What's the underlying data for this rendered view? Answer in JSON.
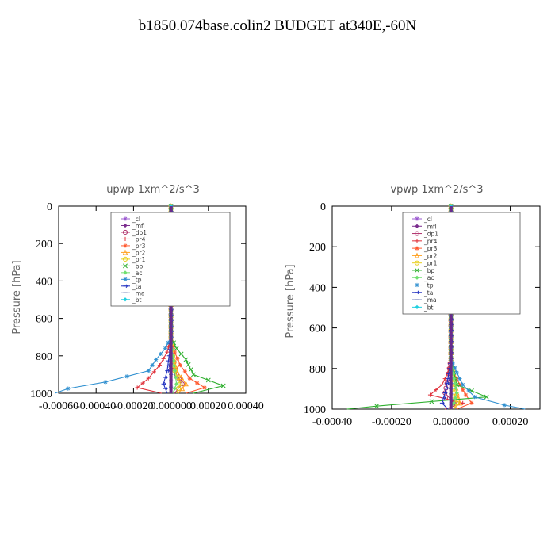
{
  "figure_title": "b1850.074base.colin2  BUDGET at340E,-60N",
  "legend_labels": [
    "_cl",
    "_mfl",
    "_dp1",
    "_pr4",
    "_pr3",
    "_pr2",
    "_pr1",
    "_bp",
    "_ac",
    "_tp",
    "_ta",
    "_ma",
    "_bt"
  ],
  "legend_colors": [
    "#9b59d0",
    "#7b2d8e",
    "#b0306a",
    "#e0303a",
    "#ff5a30",
    "#ffa020",
    "#e8d020",
    "#30b030",
    "#70e070",
    "#3090d0",
    "#2030c0",
    "#6070b0",
    "#20d0e0"
  ],
  "chart_data": [
    {
      "type": "line",
      "title": "upwp   1xm^2/s^3",
      "ylabel": "Pressure [hPa]",
      "xlim": [
        -0.0006,
        0.0004
      ],
      "ylim": [
        1000,
        0
      ],
      "x_tick_labels": [
        "-0.00060",
        "-0.00040",
        "-0.00020",
        "0.000000",
        "0.00020",
        "0.00040"
      ],
      "y_tick_labels": [
        "0",
        "200",
        "400",
        "600",
        "800",
        "1000"
      ],
      "legend_position": "top-right",
      "grid": false,
      "series": [
        {
          "name": "_cl",
          "color": "#9b59d0",
          "x": [
            0,
            0,
            0,
            0,
            0,
            0,
            0
          ],
          "y": [
            0,
            200,
            400,
            600,
            800,
            900,
            1000
          ]
        },
        {
          "name": "_mfl",
          "color": "#7b2d8e",
          "x": [
            0,
            0,
            0,
            0,
            0,
            0,
            0
          ],
          "y": [
            0,
            200,
            400,
            600,
            800,
            900,
            1000
          ]
        },
        {
          "name": "_dp1",
          "color": "#b0306a",
          "x": [
            0,
            0,
            0,
            1e-05,
            3e-05,
            6e-05,
            2e-05
          ],
          "y": [
            0,
            400,
            700,
            800,
            900,
            950,
            1000
          ]
        },
        {
          "name": "_pr4",
          "color": "#e0303a",
          "x": [
            0,
            0,
            -2e-05,
            -6e-05,
            -0.00012,
            -0.00018,
            -5e-05
          ],
          "y": [
            0,
            700,
            780,
            850,
            920,
            970,
            1000
          ]
        },
        {
          "name": "_pr3",
          "color": "#ff5a30",
          "x": [
            0,
            0,
            2e-05,
            5e-05,
            0.0001,
            0.00018,
            8e-05
          ],
          "y": [
            0,
            700,
            780,
            850,
            920,
            970,
            1000
          ]
        },
        {
          "name": "_pr2",
          "color": "#ffa020",
          "x": [
            0,
            0,
            1e-05,
            3e-05,
            8e-05,
            4e-05
          ],
          "y": [
            0,
            700,
            800,
            880,
            950,
            1000
          ]
        },
        {
          "name": "_pr1",
          "color": "#e8d020",
          "x": [
            0,
            0,
            1e-05,
            2e-05,
            5e-05,
            3e-05
          ],
          "y": [
            0,
            700,
            800,
            880,
            950,
            1000
          ]
        },
        {
          "name": "_bp",
          "color": "#30b030",
          "x": [
            0,
            0,
            3e-05,
            8e-05,
            0.00012,
            0.00028,
            0.00012
          ],
          "y": [
            0,
            700,
            760,
            820,
            900,
            960,
            1000
          ]
        },
        {
          "name": "_ac",
          "color": "#70e070",
          "x": [
            0,
            0,
            1e-05,
            2e-05,
            3e-05,
            1e-05
          ],
          "y": [
            0,
            700,
            800,
            880,
            950,
            1000
          ]
        },
        {
          "name": "_tp",
          "color": "#3090d0",
          "x": [
            0,
            0,
            -3e-05,
            -8e-05,
            -0.00012,
            -0.00035,
            -0.00055,
            -0.00062
          ],
          "y": [
            0,
            700,
            760,
            820,
            880,
            940,
            975,
            1000
          ]
        },
        {
          "name": "_ta",
          "color": "#2030c0",
          "x": [
            0,
            0,
            -1e-05,
            -2e-05,
            -4e-05,
            -2e-05
          ],
          "y": [
            0,
            700,
            800,
            880,
            950,
            1000
          ]
        },
        {
          "name": "_ma",
          "color": "#6070b0",
          "x": [
            0,
            0,
            0,
            0,
            0
          ],
          "y": [
            0,
            400,
            700,
            900,
            1000
          ]
        },
        {
          "name": "_bt",
          "color": "#20d0e0",
          "x": [
            0,
            0,
            0,
            0,
            0
          ],
          "y": [
            0,
            400,
            700,
            900,
            1000
          ]
        }
      ]
    },
    {
      "type": "line",
      "title": "vpwp   1xm^2/s^3",
      "ylabel": "Pressure [hPa]",
      "xlim": [
        -0.0004,
        0.0003
      ],
      "ylim": [
        1000,
        0
      ],
      "x_tick_labels": [
        "-0.00040",
        "-0.00020",
        "0.00000",
        "0.00020"
      ],
      "y_tick_labels": [
        "0",
        "200",
        "400",
        "600",
        "800",
        "1000"
      ],
      "legend_position": "top-right",
      "grid": false,
      "series": [
        {
          "name": "_cl",
          "color": "#9b59d0",
          "x": [
            0,
            0,
            0,
            0,
            0,
            0,
            0
          ],
          "y": [
            0,
            200,
            400,
            600,
            800,
            900,
            1000
          ]
        },
        {
          "name": "_mfl",
          "color": "#7b2d8e",
          "x": [
            0,
            0,
            0,
            0,
            0,
            0,
            0
          ],
          "y": [
            0,
            200,
            400,
            600,
            800,
            900,
            1000
          ]
        },
        {
          "name": "_dp1",
          "color": "#b0306a",
          "x": [
            0,
            0,
            0,
            -1e-05,
            -2e-05,
            1e-05,
            0
          ],
          "y": [
            0,
            400,
            750,
            850,
            920,
            970,
            1000
          ]
        },
        {
          "name": "_pr4",
          "color": "#e0303a",
          "x": [
            0,
            0,
            -1e-05,
            -3e-05,
            -7e-05,
            4e-05,
            -2e-05
          ],
          "y": [
            0,
            750,
            820,
            880,
            930,
            970,
            1000
          ]
        },
        {
          "name": "_pr3",
          "color": "#ff5a30",
          "x": [
            0,
            0,
            1e-05,
            3e-05,
            5e-05,
            7e-05,
            2e-05
          ],
          "y": [
            0,
            750,
            820,
            880,
            930,
            970,
            1000
          ]
        },
        {
          "name": "_pr2",
          "color": "#ffa020",
          "x": [
            0,
            0,
            1e-05,
            2e-05,
            3e-05,
            1e-05
          ],
          "y": [
            0,
            750,
            850,
            920,
            970,
            1000
          ]
        },
        {
          "name": "_pr1",
          "color": "#e8d020",
          "x": [
            0,
            0,
            1e-05,
            1e-05,
            2e-05,
            1e-05
          ],
          "y": [
            0,
            750,
            850,
            920,
            970,
            1000
          ]
        },
        {
          "name": "_bp",
          "color": "#30b030",
          "x": [
            0,
            0,
            1e-05,
            2e-05,
            0.00012,
            -0.00025,
            -0.00035
          ],
          "y": [
            0,
            750,
            820,
            880,
            940,
            985,
            1000
          ]
        },
        {
          "name": "_ac",
          "color": "#70e070",
          "x": [
            0,
            0,
            1e-05,
            2e-05,
            1e-05,
            0
          ],
          "y": [
            0,
            750,
            850,
            920,
            970,
            1000
          ]
        },
        {
          "name": "_tp",
          "color": "#3090d0",
          "x": [
            0,
            0,
            2e-05,
            4e-05,
            8e-05,
            0.00018,
            0.00025
          ],
          "y": [
            0,
            750,
            820,
            880,
            940,
            980,
            1000
          ]
        },
        {
          "name": "_ta",
          "color": "#2030c0",
          "x": [
            0,
            0,
            -1e-05,
            -2e-05,
            -3e-05,
            -1e-05
          ],
          "y": [
            0,
            750,
            850,
            920,
            970,
            1000
          ]
        },
        {
          "name": "_ma",
          "color": "#6070b0",
          "x": [
            0,
            0,
            0,
            0,
            0
          ],
          "y": [
            0,
            400,
            700,
            900,
            1000
          ]
        },
        {
          "name": "_bt",
          "color": "#20d0e0",
          "x": [
            0,
            0,
            0,
            0,
            0
          ],
          "y": [
            0,
            400,
            700,
            900,
            1000
          ]
        }
      ]
    }
  ]
}
